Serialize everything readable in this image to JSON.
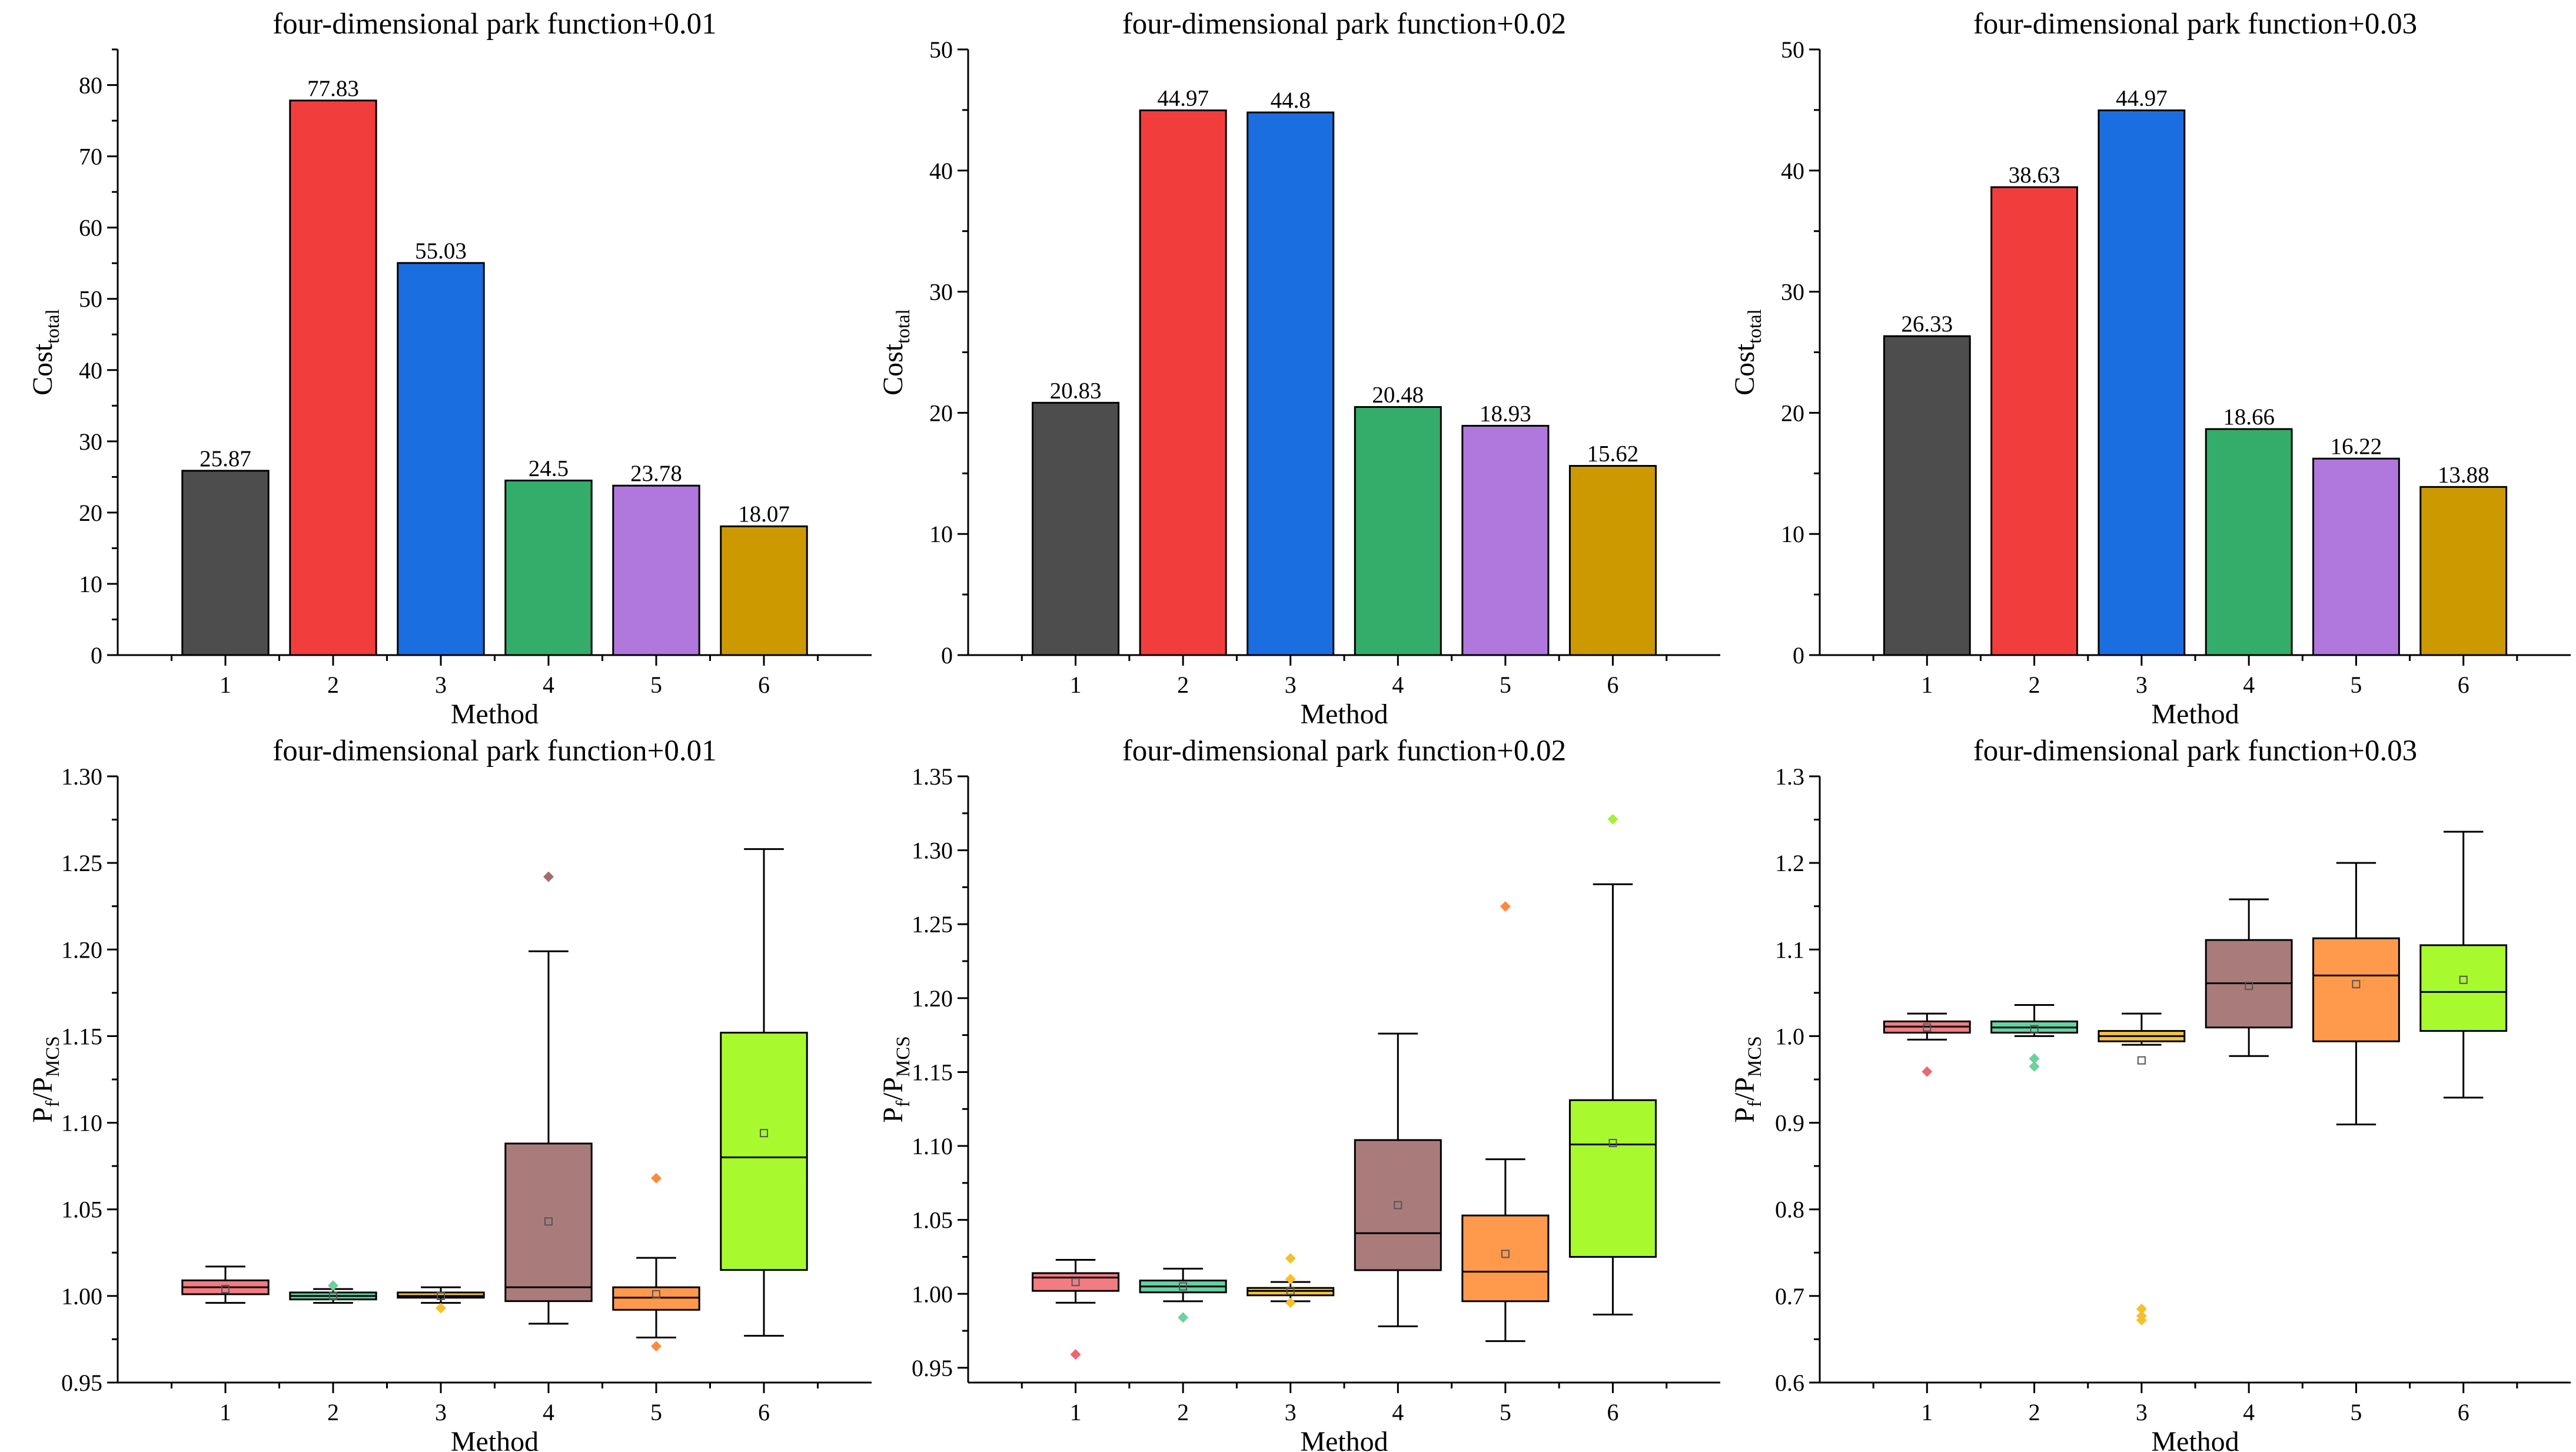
{
  "colors": {
    "bars": [
      "#4d4d4d",
      "#f23d3d",
      "#1b6ee0",
      "#34ad6a",
      "#b077dd",
      "#cc9a00"
    ],
    "boxes": [
      "#f27c82",
      "#64d2a3",
      "#f5c33b",
      "#a97c7b",
      "#ff9a4d",
      "#a8fa2e"
    ],
    "outliers": [
      "#ee6670",
      "#6ad29a",
      "#f5c02a",
      "#a66b68",
      "#ff8a3d",
      "#a3f03a"
    ]
  },
  "chart_data": [
    {
      "type": "bar",
      "title": "four-dimensional park function+0.01",
      "categories": [
        "1",
        "2",
        "3",
        "4",
        "5",
        "6"
      ],
      "values": [
        25.87,
        77.83,
        55.03,
        24.5,
        23.78,
        18.07
      ],
      "value_labels": [
        "25.87",
        "77.83",
        "55.03",
        "24.5",
        "23.78",
        "18.07"
      ],
      "xlabel": "Method",
      "ylabel": "Cost",
      "ylabel_sub": "total",
      "ylim": [
        0,
        85
      ],
      "yticks": [
        0,
        10,
        20,
        30,
        40,
        50,
        60,
        70,
        80
      ],
      "yticklabels": [
        "0",
        "10",
        "20",
        "30",
        "40",
        "50",
        "60",
        "70",
        "80"
      ]
    },
    {
      "type": "bar",
      "title": "four-dimensional park function+0.02",
      "categories": [
        "1",
        "2",
        "3",
        "4",
        "5",
        "6"
      ],
      "values": [
        20.83,
        44.97,
        44.8,
        20.48,
        18.93,
        15.62
      ],
      "value_labels": [
        "20.83",
        "44.97",
        "44.8",
        "20.48",
        "18.93",
        "15.62"
      ],
      "xlabel": "Method",
      "ylabel": "Cost",
      "ylabel_sub": "total",
      "ylim": [
        0,
        50
      ],
      "yticks": [
        0,
        10,
        20,
        30,
        40,
        50
      ],
      "yticklabels": [
        "0",
        "10",
        "20",
        "30",
        "40",
        "50"
      ]
    },
    {
      "type": "bar",
      "title": "four-dimensional park function+0.03",
      "categories": [
        "1",
        "2",
        "3",
        "4",
        "5",
        "6"
      ],
      "values": [
        26.33,
        38.63,
        44.97,
        18.66,
        16.22,
        13.88
      ],
      "value_labels": [
        "26.33",
        "38.63",
        "44.97",
        "18.66",
        "16.22",
        "13.88"
      ],
      "xlabel": "Method",
      "ylabel": "Cost",
      "ylabel_sub": "total",
      "ylim": [
        0,
        50
      ],
      "yticks": [
        0,
        10,
        20,
        30,
        40,
        50
      ],
      "yticklabels": [
        "0",
        "10",
        "20",
        "30",
        "40",
        "50"
      ]
    },
    {
      "type": "box",
      "title": "four-dimensional park function+0.01",
      "categories": [
        "1",
        "2",
        "3",
        "4",
        "5",
        "6"
      ],
      "xlabel": "Method",
      "ylabel": "P",
      "ylabel_sub1": "f",
      "ylabel_mid": "/P",
      "ylabel_sub2": "MCS",
      "ylim": [
        0.95,
        1.3
      ],
      "yticks": [
        0.95,
        1.0,
        1.05,
        1.1,
        1.15,
        1.2,
        1.25,
        1.3
      ],
      "yticklabels": [
        "0.95",
        "1.00",
        "1.05",
        "1.10",
        "1.15",
        "1.20",
        "1.25",
        "1.30"
      ],
      "boxes": [
        {
          "wlo": 0.996,
          "q1": 1.001,
          "median": 1.005,
          "q3": 1.009,
          "whi": 1.017,
          "mean": 1.004,
          "outliers": []
        },
        {
          "wlo": 0.996,
          "q1": 0.998,
          "median": 1.0,
          "q3": 1.002,
          "whi": 1.004,
          "mean": 1.0,
          "outliers": [
            1.006
          ]
        },
        {
          "wlo": 0.996,
          "q1": 0.999,
          "median": 1.0,
          "q3": 1.002,
          "whi": 1.005,
          "mean": 1.0,
          "outliers": [
            0.993
          ]
        },
        {
          "wlo": 0.984,
          "q1": 0.997,
          "median": 1.005,
          "q3": 1.088,
          "whi": 1.199,
          "mean": 1.043,
          "outliers": [
            1.242
          ]
        },
        {
          "wlo": 0.976,
          "q1": 0.992,
          "median": 0.999,
          "q3": 1.005,
          "whi": 1.022,
          "mean": 1.001,
          "outliers": [
            1.068,
            0.971
          ]
        },
        {
          "wlo": 0.977,
          "q1": 1.015,
          "median": 1.08,
          "q3": 1.152,
          "whi": 1.258,
          "mean": 1.094,
          "outliers": []
        }
      ]
    },
    {
      "type": "box",
      "title": "four-dimensional park function+0.02",
      "categories": [
        "1",
        "2",
        "3",
        "4",
        "5",
        "6"
      ],
      "xlabel": "Method",
      "ylabel": "P",
      "ylabel_sub1": "f",
      "ylabel_mid": "/P",
      "ylabel_sub2": "MCS",
      "ylim": [
        0.94,
        1.35
      ],
      "yticks": [
        0.95,
        1.0,
        1.05,
        1.1,
        1.15,
        1.2,
        1.25,
        1.3,
        1.35
      ],
      "yticklabels": [
        "0.95",
        "1.00",
        "1.05",
        "1.10",
        "1.15",
        "1.20",
        "1.25",
        "1.30",
        "1.35"
      ],
      "boxes": [
        {
          "wlo": 0.994,
          "q1": 1.002,
          "median": 1.011,
          "q3": 1.014,
          "whi": 1.023,
          "mean": 1.008,
          "outliers": [
            0.959
          ]
        },
        {
          "wlo": 0.995,
          "q1": 1.001,
          "median": 1.005,
          "q3": 1.009,
          "whi": 1.017,
          "mean": 1.005,
          "outliers": [
            0.984
          ]
        },
        {
          "wlo": 0.995,
          "q1": 0.999,
          "median": 1.002,
          "q3": 1.004,
          "whi": 1.008,
          "mean": 1.002,
          "outliers": [
            1.024,
            0.994,
            1.01
          ]
        },
        {
          "wlo": 0.978,
          "q1": 1.016,
          "median": 1.041,
          "q3": 1.104,
          "whi": 1.176,
          "mean": 1.06,
          "outliers": []
        },
        {
          "wlo": 0.968,
          "q1": 0.995,
          "median": 1.015,
          "q3": 1.053,
          "whi": 1.091,
          "mean": 1.027,
          "outliers": [
            1.262
          ]
        },
        {
          "wlo": 0.986,
          "q1": 1.025,
          "median": 1.101,
          "q3": 1.131,
          "whi": 1.277,
          "mean": 1.102,
          "outliers": [
            1.321
          ]
        }
      ]
    },
    {
      "type": "box",
      "title": "four-dimensional park function+0.03",
      "categories": [
        "1",
        "2",
        "3",
        "4",
        "5",
        "6"
      ],
      "xlabel": "Method",
      "ylabel": "P",
      "ylabel_sub1": "f",
      "ylabel_mid": "/P",
      "ylabel_sub2": "MCS",
      "ylim": [
        0.6,
        1.3
      ],
      "yticks": [
        0.6,
        0.7,
        0.8,
        0.9,
        1.0,
        1.1,
        1.2,
        1.3
      ],
      "yticklabels": [
        "0.6",
        "0.7",
        "0.8",
        "0.9",
        "1.0",
        "1.1",
        "1.2",
        "1.3"
      ],
      "boxes": [
        {
          "wlo": 0.996,
          "q1": 1.004,
          "median": 1.011,
          "q3": 1.017,
          "whi": 1.026,
          "mean": 1.01,
          "outliers": [
            0.959
          ]
        },
        {
          "wlo": 1.0,
          "q1": 1.004,
          "median": 1.01,
          "q3": 1.017,
          "whi": 1.036,
          "mean": 1.008,
          "outliers": [
            0.965,
            0.974
          ]
        },
        {
          "wlo": 0.99,
          "q1": 0.994,
          "median": 1.0,
          "q3": 1.006,
          "whi": 1.026,
          "mean": 0.972,
          "outliers": [
            0.685,
            0.672,
            0.677
          ]
        },
        {
          "wlo": 0.977,
          "q1": 1.01,
          "median": 1.061,
          "q3": 1.111,
          "whi": 1.158,
          "mean": 1.058,
          "outliers": []
        },
        {
          "wlo": 0.898,
          "q1": 0.994,
          "median": 1.07,
          "q3": 1.113,
          "whi": 1.2,
          "mean": 1.06,
          "outliers": []
        },
        {
          "wlo": 0.929,
          "q1": 1.006,
          "median": 1.051,
          "q3": 1.105,
          "whi": 1.236,
          "mean": 1.065,
          "outliers": []
        }
      ]
    }
  ]
}
